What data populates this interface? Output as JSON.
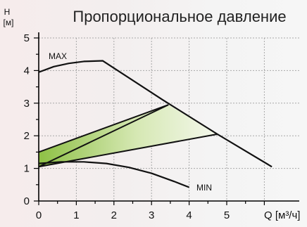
{
  "chart_data": {
    "type": "line",
    "title": "Пропорциональное давление",
    "ylabel_top": "H",
    "ylabel_unit": "[м]",
    "xlabel": "Q [м³/ч]",
    "xlim": [
      0,
      6.2
    ],
    "ylim": [
      0,
      5
    ],
    "x_ticks": [
      "0",
      "1",
      "2",
      "3",
      "4",
      "5",
      "Q [м³/ч]"
    ],
    "y_ticks": [
      "0",
      "1",
      "2",
      "3",
      "4",
      "5"
    ],
    "grid": true,
    "annotations": [
      "MAX",
      "MIN"
    ],
    "series": [
      {
        "name": "MAX",
        "x": [
          0,
          0.4,
          0.8,
          1.2,
          1.7,
          3.3,
          4.75,
          6.2
        ],
        "y": [
          3.95,
          4.12,
          4.22,
          4.28,
          4.3,
          3.1,
          2.05,
          1.05
        ]
      },
      {
        "name": "MIN",
        "x": [
          0,
          0.6,
          1.2,
          1.8,
          2.4,
          3.0,
          3.6,
          4.0
        ],
        "y": [
          1.15,
          1.2,
          1.2,
          1.15,
          1.03,
          0.85,
          0.6,
          0.42
        ]
      },
      {
        "x": [
          0,
          3.45
        ],
        "y": [
          1.5,
          2.95
        ]
      },
      {
        "x": [
          0,
          3.45
        ],
        "y": [
          1.05,
          2.95
        ]
      },
      {
        "x": [
          0,
          4.75
        ],
        "y": [
          1.05,
          2.05
        ]
      }
    ],
    "shaded_region": {
      "x": [
        0,
        3.45,
        4.75,
        0
      ],
      "y": [
        1.5,
        2.95,
        2.05,
        1.05
      ],
      "color_left": "#8ec045",
      "color_right": "#f4f8ec"
    }
  }
}
